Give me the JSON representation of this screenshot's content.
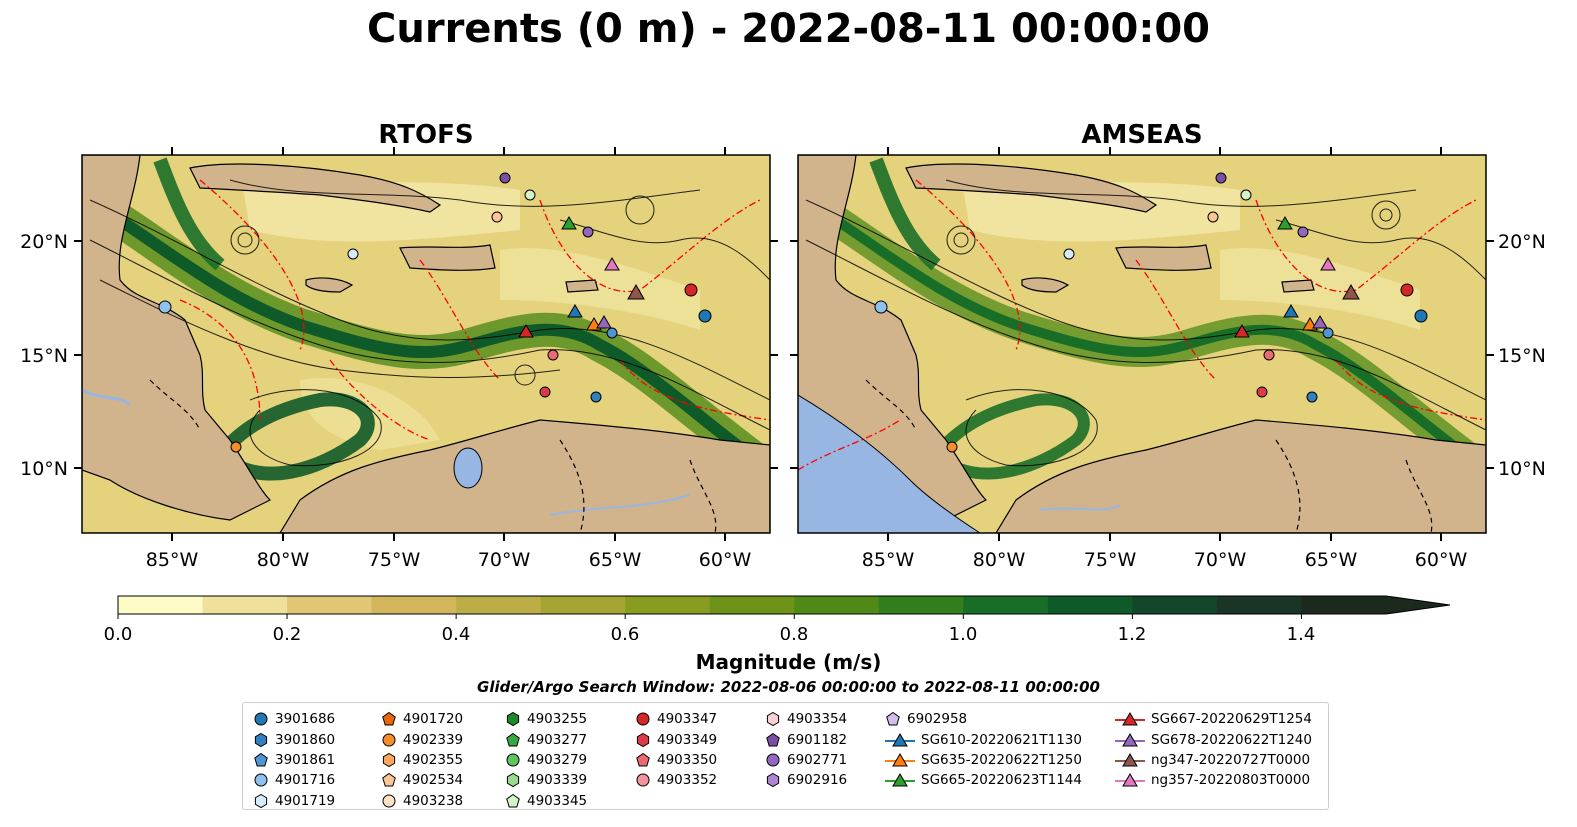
{
  "title": "Currents (0 m) - 2022-08-11 00:00:00",
  "panels": [
    {
      "title": "RTOFS"
    },
    {
      "title": "AMSEAS"
    }
  ],
  "axes": {
    "lon_labels": [
      "85°W",
      "80°W",
      "75°W",
      "70°W",
      "65°W",
      "60°W"
    ],
    "lat_labels": [
      "20°N",
      "15°N",
      "10°N"
    ]
  },
  "colors": {
    "land": "#d2b48c",
    "water_inland": "#97b6e1",
    "eez_lines": "#ff0000",
    "borders": "#000000"
  },
  "colorbar": {
    "label": "Magnitude (m/s)",
    "ticks": [
      "0.0",
      "0.2",
      "0.4",
      "0.6",
      "0.8",
      "1.0",
      "1.2",
      "1.4"
    ],
    "range": [
      0.0,
      1.5
    ],
    "extend": "max",
    "colors": [
      "#fefcc6",
      "#efe09b",
      "#e1c775",
      "#d3b65b",
      "#bdad46",
      "#a4a532",
      "#889c22",
      "#6d9418",
      "#4f8a18",
      "#327e1d",
      "#196e27",
      "#0f5a29",
      "#13462a",
      "#1a3525",
      "#1c291d"
    ]
  },
  "search_window": "Glider/Argo Search Window: 2022-08-06 00:00:00 to 2022-08-11 00:00:00",
  "legend": {
    "columns": [
      [
        {
          "label": "3901686",
          "marker": "circle",
          "color": "#1f77b4"
        },
        {
          "label": "3901860",
          "marker": "hexagon",
          "color": "#2f81c0"
        },
        {
          "label": "3901861",
          "marker": "pentagon",
          "color": "#4f95d3"
        },
        {
          "label": "4901716",
          "marker": "circle",
          "color": "#8ec1ec"
        },
        {
          "label": "4901719",
          "marker": "hexagon",
          "color": "#d6ecfa"
        }
      ],
      [
        {
          "label": "4901720",
          "marker": "pentagon",
          "color": "#e8690a"
        },
        {
          "label": "4902339",
          "marker": "circle",
          "color": "#f58f2c"
        },
        {
          "label": "4902355",
          "marker": "hexagon",
          "color": "#f8a95e"
        },
        {
          "label": "4902534",
          "marker": "pentagon",
          "color": "#fbc693"
        },
        {
          "label": "4903238",
          "marker": "circle",
          "color": "#fde3c4"
        }
      ],
      [
        {
          "label": "4903255",
          "marker": "hexagon",
          "color": "#1b8a2a"
        },
        {
          "label": "4903277",
          "marker": "pentagon",
          "color": "#36a845"
        },
        {
          "label": "4903279",
          "marker": "circle",
          "color": "#5fc460"
        },
        {
          "label": "4903339",
          "marker": "hexagon",
          "color": "#98db8e"
        },
        {
          "label": "4903345",
          "marker": "pentagon",
          "color": "#d3f2c8"
        }
      ],
      [
        {
          "label": "4903347",
          "marker": "circle",
          "color": "#d62728"
        },
        {
          "label": "4903349",
          "marker": "hexagon",
          "color": "#dd3b47"
        },
        {
          "label": "4903350",
          "marker": "pentagon",
          "color": "#ea6a74"
        },
        {
          "label": "4903352",
          "marker": "circle",
          "color": "#f1959a"
        }
      ],
      [
        {
          "label": "4903354",
          "marker": "hexagon",
          "color": "#fbd0d2"
        },
        {
          "label": "6901182",
          "marker": "pentagon",
          "color": "#7b4fa3"
        },
        {
          "label": "6902771",
          "marker": "circle",
          "color": "#9467bd"
        },
        {
          "label": "6902916",
          "marker": "hexagon",
          "color": "#ad86d2"
        }
      ],
      [
        {
          "label": "6902958",
          "marker": "pentagon",
          "color": "#d4bdea"
        },
        {
          "label": "SG610-20220621T1130",
          "marker": "triangle-line",
          "color": "#1f77b4"
        },
        {
          "label": "SG635-20220622T1250",
          "marker": "triangle-line",
          "color": "#ff7f0e"
        },
        {
          "label": "SG665-20220623T1144",
          "marker": "triangle-line",
          "color": "#2ca02c"
        }
      ],
      [
        {
          "label": "SG667-20220629T1254",
          "marker": "triangle-line",
          "color": "#d62728"
        },
        {
          "label": "SG678-20220622T1240",
          "marker": "triangle-line",
          "color": "#9467bd"
        },
        {
          "label": "ng347-20220727T0000",
          "marker": "triangle-line",
          "color": "#8c564b"
        },
        {
          "label": "ng357-20220803T0000",
          "marker": "triangle-line",
          "color": "#e377c2"
        }
      ]
    ]
  }
}
